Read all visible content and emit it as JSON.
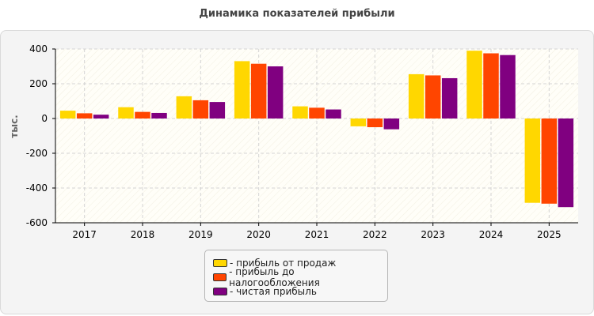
{
  "chart_data": {
    "type": "bar",
    "title": "Динамика показателей прибыли",
    "ylabel": "тыс.",
    "categories": [
      "2017",
      "2018",
      "2019",
      "2020",
      "2021",
      "2022",
      "2023",
      "2024",
      "2025"
    ],
    "ylim": [
      -600,
      400
    ],
    "yticks": [
      400,
      200,
      0,
      -200,
      -400,
      -600
    ],
    "grid": true,
    "legend_position": "bottom-center",
    "series": [
      {
        "name": "- прибыль от продаж",
        "color": "#FFD700",
        "values": [
          45,
          65,
          128,
          330,
          70,
          -45,
          255,
          390,
          -485
        ]
      },
      {
        "name": "- прибыль до налогообложения",
        "color": "#FF4500",
        "values": [
          30,
          38,
          105,
          315,
          62,
          -50,
          248,
          375,
          -490
        ]
      },
      {
        "name": "- чистая прибыль",
        "color": "#800080",
        "values": [
          22,
          32,
          95,
          300,
          52,
          -62,
          232,
          365,
          -510
        ]
      }
    ]
  }
}
